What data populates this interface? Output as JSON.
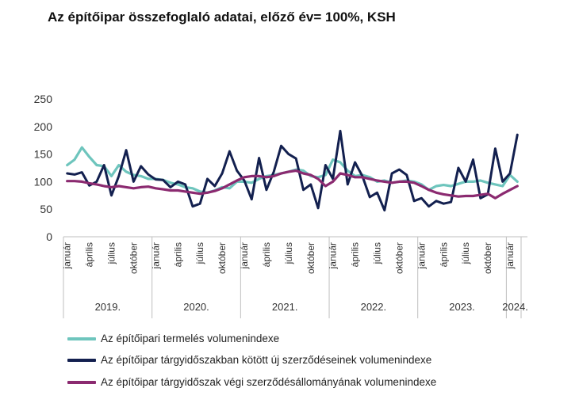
{
  "chart_data": {
    "type": "line",
    "title": "Az építőipar összefoglaló adatai, előző év= 100%, KSH",
    "ylim": [
      0,
      250
    ],
    "yticks": [
      0,
      50,
      100,
      150,
      200,
      250
    ],
    "grid": false,
    "legend": "bottom",
    "month_labels": [
      "január",
      "április",
      "július",
      "október"
    ],
    "years": [
      "2019.",
      "2020.",
      "2021.",
      "2022.",
      "2023.",
      "2024."
    ],
    "series": [
      {
        "name": "Az építőipari termelés volumenindexe",
        "color": "#6ec5bd",
        "values": [
          130,
          140,
          162,
          145,
          130,
          128,
          110,
          130,
          118,
          112,
          110,
          105,
          105,
          103,
          98,
          95,
          90,
          88,
          82,
          80,
          84,
          90,
          88,
          100,
          100,
          98,
          105,
          110,
          112,
          115,
          118,
          122,
          120,
          110,
          108,
          112,
          140,
          135,
          120,
          110,
          112,
          108,
          100,
          102,
          98,
          100,
          102,
          100,
          95,
          85,
          92,
          94,
          92,
          96,
          100,
          100,
          102,
          98,
          95,
          92,
          112,
          100
        ]
      },
      {
        "name": "Az építőipar tárgyidőszakban kötött új szerződéseinek volumenindexe",
        "color": "#13204f",
        "values": [
          115,
          113,
          117,
          93,
          100,
          130,
          75,
          110,
          157,
          100,
          128,
          113,
          104,
          103,
          90,
          100,
          95,
          55,
          60,
          105,
          92,
          115,
          155,
          120,
          102,
          68,
          143,
          85,
          118,
          165,
          150,
          142,
          85,
          95,
          52,
          130,
          105,
          192,
          95,
          135,
          110,
          72,
          80,
          48,
          115,
          122,
          112,
          65,
          70,
          55,
          65,
          60,
          63,
          125,
          100,
          140,
          70,
          77,
          160,
          100,
          115,
          185
        ]
      },
      {
        "name": "Az építőipar tárgyidőszak végi szerződésállományának volumenindexe",
        "color": "#8b2a70",
        "values": [
          101,
          101,
          100,
          97,
          95,
          92,
          90,
          92,
          90,
          88,
          90,
          91,
          88,
          86,
          84,
          84,
          82,
          80,
          78,
          80,
          83,
          88,
          95,
          102,
          108,
          110,
          110,
          108,
          110,
          115,
          118,
          120,
          115,
          112,
          105,
          92,
          100,
          115,
          112,
          108,
          108,
          105,
          102,
          100,
          98,
          100,
          100,
          98,
          92,
          85,
          80,
          77,
          75,
          73,
          74,
          74,
          76,
          78,
          70,
          78,
          85,
          92
        ]
      }
    ]
  }
}
